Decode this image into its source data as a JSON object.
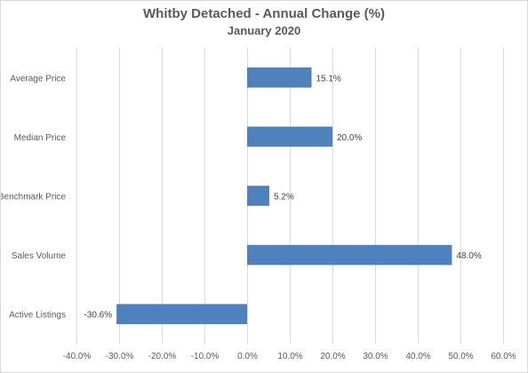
{
  "chart_data": {
    "type": "bar",
    "orientation": "horizontal",
    "title": "Whitby Detached - Annual Change (%)",
    "subtitle": "January 2020",
    "categories": [
      "Average Price",
      "Median Price",
      "Benchmark Price",
      "Sales Volume",
      "Active Listings"
    ],
    "values": [
      15.1,
      20.0,
      5.2,
      48.0,
      -30.6
    ],
    "value_labels": [
      "15.1%",
      "20.0%",
      "5.2%",
      "48.0%",
      "-30.6%"
    ],
    "xlim": [
      -40,
      60
    ],
    "xticks": [
      -40,
      -30,
      -20,
      -10,
      0,
      10,
      20,
      30,
      40,
      50,
      60
    ],
    "xtick_labels": [
      "-40.0%",
      "-30.0%",
      "-20.0%",
      "-10.0%",
      "0.0%",
      "10.0%",
      "20.0%",
      "30.0%",
      "40.0%",
      "50.0%",
      "60.0%"
    ],
    "xlabel": "",
    "ylabel": "",
    "grid": "vertical",
    "legend": "none",
    "colors": {
      "bar": "#4f81bd",
      "grid": "#d9d9d9",
      "text": "#595959"
    }
  }
}
